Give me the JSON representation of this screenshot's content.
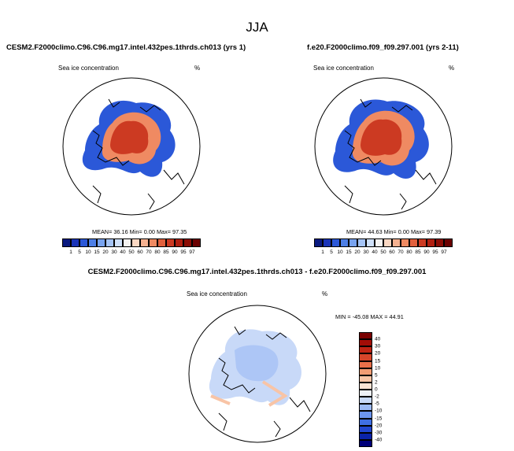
{
  "figure": {
    "title": "JJA",
    "panels": [
      {
        "title": "CESM2.F2000climo.C96.C96.mg17.intel.432pes.1thrds.ch013 (yrs 1)",
        "variable": "Sea ice concentration",
        "units": "%",
        "mean_label": "MEAN=",
        "mean_value": "36.16",
        "min_label": "Min=",
        "min_value": "0.00",
        "max_label": "Max=",
        "max_value": "97.35"
      },
      {
        "title": "f.e20.F2000climo.f09_f09.297.001 (yrs 2-11)",
        "variable": "Sea ice concentration",
        "units": "%",
        "mean_label": "MEAN=",
        "mean_value": "44.63",
        "min_label": "Min=",
        "min_value": "0.00",
        "max_label": "Max=",
        "max_value": "97.39"
      }
    ],
    "diff": {
      "title": "CESM2.F2000climo.C96.C96.mg17.intel.432pes.1thrds.ch013 - f.e20.F2000climo.f09_f09.297.001",
      "variable": "Sea ice concentration",
      "units": "%",
      "minmax": "MIN = -45.08 MAX =  44.91"
    }
  },
  "chart_data": [
    {
      "type": "heatmap",
      "projection": "polar stereographic (north pole)",
      "title": "CESM2.F2000climo.C96.C96.mg17.intel.432pes.1thrds.ch013 (yrs 1)",
      "variable": "Sea ice concentration",
      "units": "%",
      "mean": 36.16,
      "min": 0.0,
      "max": 97.35,
      "colorbar_levels": [
        1,
        5,
        10,
        15,
        20,
        30,
        40,
        50,
        60,
        70,
        80,
        85,
        90,
        95,
        97
      ]
    },
    {
      "type": "heatmap",
      "projection": "polar stereographic (north pole)",
      "title": "f.e20.F2000climo.f09_f09.297.001 (yrs 2-11)",
      "variable": "Sea ice concentration",
      "units": "%",
      "mean": 44.63,
      "min": 0.0,
      "max": 97.39,
      "colorbar_levels": [
        1,
        5,
        10,
        15,
        20,
        30,
        40,
        50,
        60,
        70,
        80,
        85,
        90,
        95,
        97
      ]
    },
    {
      "type": "heatmap",
      "projection": "polar stereographic (north pole)",
      "title": "CESM2.F2000climo.C96.C96.mg17.intel.432pes.1thrds.ch013 - f.e20.F2000climo.f09_f09.297.001",
      "variable": "Sea ice concentration",
      "units": "%",
      "min": -45.08,
      "max": 44.91,
      "colorbar_levels": [
        -40,
        -30,
        -20,
        -15,
        -10,
        -5,
        -2,
        0,
        2,
        5,
        10,
        15,
        20,
        30,
        40
      ]
    }
  ],
  "colors": {
    "seq": [
      "#0a1a80",
      "#1a34b8",
      "#2b58d8",
      "#4d7fe6",
      "#78a3ef",
      "#a5c4f6",
      "#cfe0f9",
      "#f5f3f1",
      "#fad7c2",
      "#f5b190",
      "#ef8a62",
      "#e1603d",
      "#cc3a22",
      "#b01f10",
      "#8c0d05",
      "#6b0000"
    ],
    "div": [
      "#00007a",
      "#0a23a8",
      "#2146cf",
      "#3f6fe3",
      "#6c95ee",
      "#9bb9f5",
      "#c8d9f8",
      "#eef1f7",
      "#fbe3d4",
      "#f8c4a6",
      "#f29c74",
      "#e8704a",
      "#d6452a",
      "#bf2414",
      "#a20d07",
      "#7a0000"
    ]
  }
}
